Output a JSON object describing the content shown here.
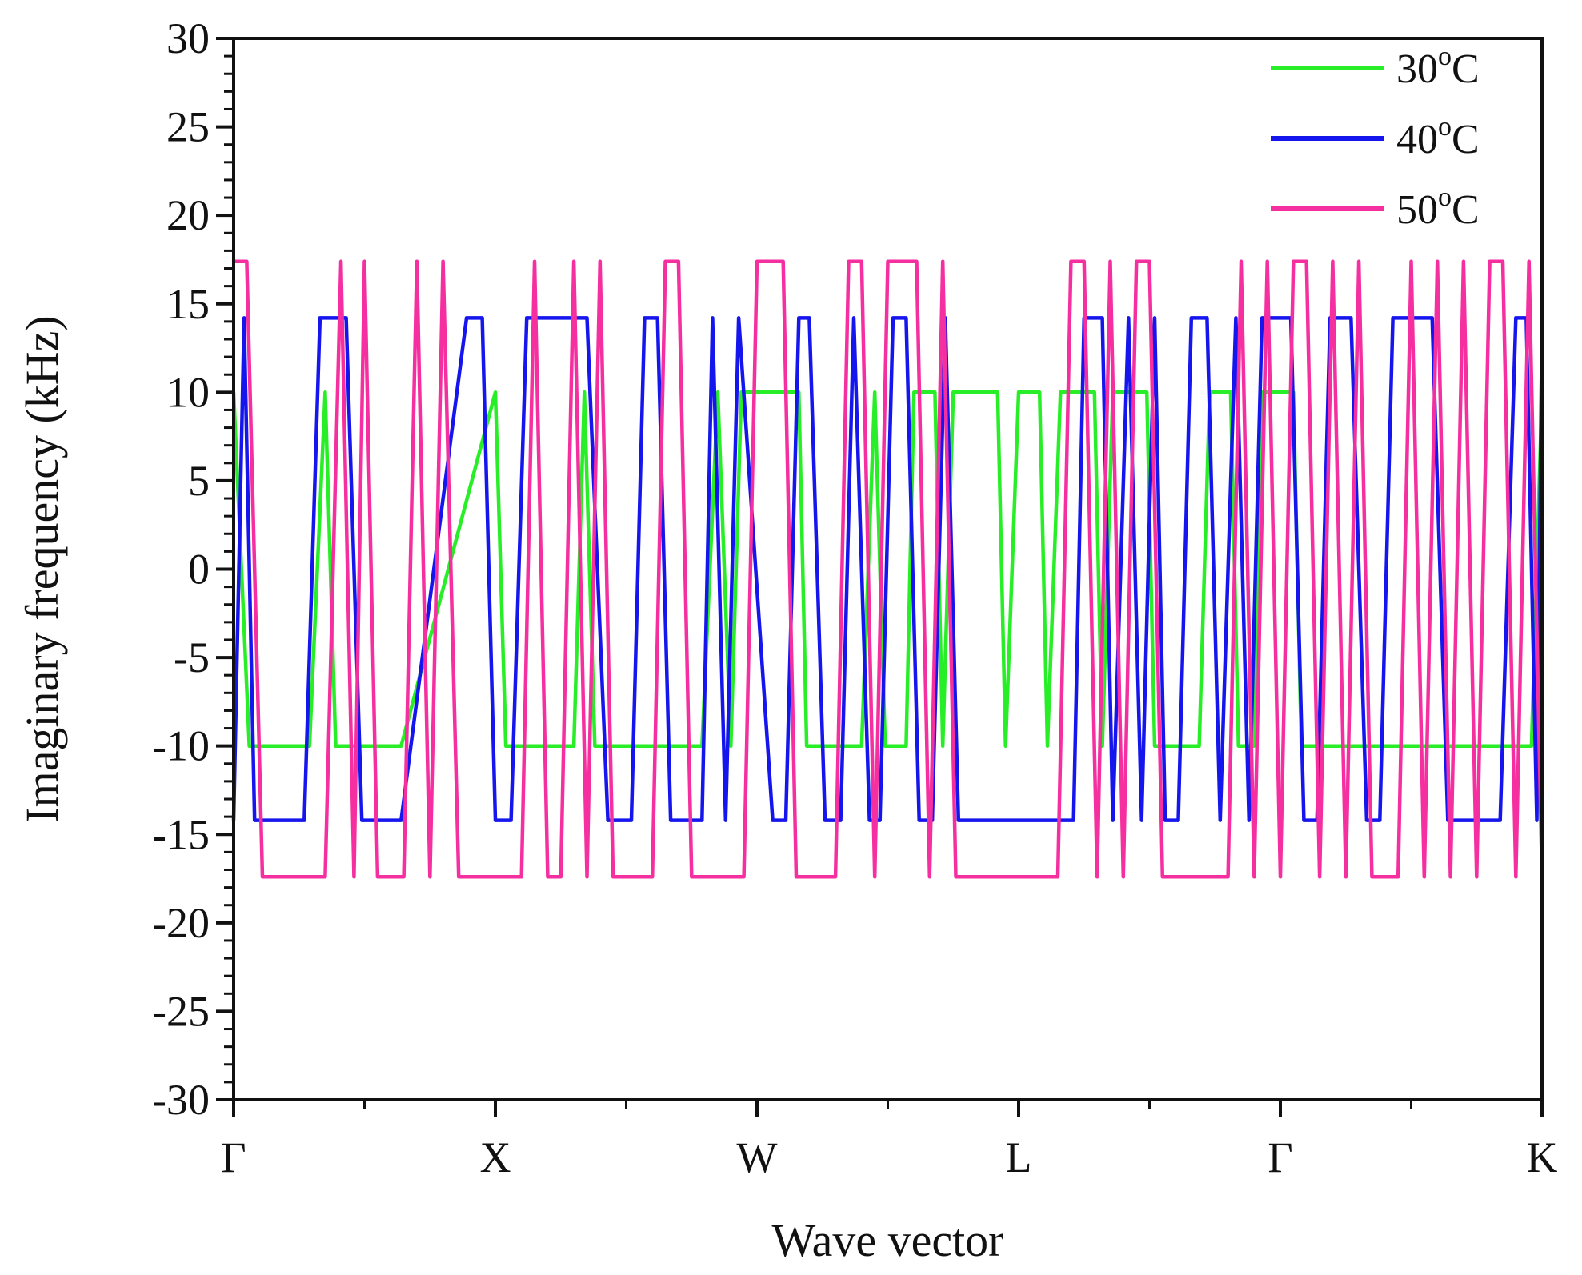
{
  "chart_data": {
    "type": "line",
    "title": "",
    "xlabel": "Wave vector",
    "ylabel": "Imaginary frequency (kHz)",
    "ylim": [
      -30,
      30
    ],
    "xlim": [
      0,
      5
    ],
    "yticks": [
      30,
      25,
      20,
      15,
      10,
      5,
      0,
      -5,
      -10,
      -15,
      -20,
      -25,
      -30
    ],
    "x_ticks": [
      {
        "value": 0,
        "label": "Γ"
      },
      {
        "value": 1,
        "label": "X"
      },
      {
        "value": 2,
        "label": "W"
      },
      {
        "value": 3,
        "label": "L"
      },
      {
        "value": 4,
        "label": "Γ"
      },
      {
        "value": 5,
        "label": "K"
      }
    ],
    "legend": {
      "placement": "top-right"
    },
    "series": [
      {
        "name": "30°C",
        "label_base": "30",
        "label_sup": "o",
        "label_unit": "C",
        "color": "#27ee27",
        "points": [
          [
            0.0,
            10
          ],
          [
            0.06,
            -10
          ],
          [
            0.29,
            -10
          ],
          [
            0.35,
            10
          ],
          [
            0.39,
            -10
          ],
          [
            0.64,
            -10
          ],
          [
            1.0,
            10
          ],
          [
            1.04,
            -10
          ],
          [
            1.3,
            -10
          ],
          [
            1.34,
            10
          ],
          [
            1.38,
            -10
          ],
          [
            1.79,
            -10
          ],
          [
            1.85,
            10
          ],
          [
            1.9,
            -10
          ],
          [
            1.94,
            10
          ],
          [
            2.16,
            10
          ],
          [
            2.19,
            -10
          ],
          [
            2.4,
            -10
          ],
          [
            2.45,
            10
          ],
          [
            2.49,
            -10
          ],
          [
            2.57,
            -10
          ],
          [
            2.6,
            10
          ],
          [
            2.68,
            10
          ],
          [
            2.71,
            -10
          ],
          [
            2.75,
            10
          ],
          [
            2.92,
            10
          ],
          [
            2.95,
            -10
          ],
          [
            3.0,
            10
          ],
          [
            3.08,
            10
          ],
          [
            3.11,
            -10
          ],
          [
            3.16,
            10
          ],
          [
            3.29,
            10
          ],
          [
            3.32,
            -10
          ],
          [
            3.36,
            10
          ],
          [
            3.49,
            10
          ],
          [
            3.52,
            -10
          ],
          [
            3.69,
            -10
          ],
          [
            3.73,
            10
          ],
          [
            3.81,
            10
          ],
          [
            3.84,
            -10
          ],
          [
            3.9,
            -10
          ],
          [
            3.93,
            10
          ],
          [
            4.05,
            10
          ],
          [
            4.08,
            -10
          ],
          [
            4.96,
            -10
          ],
          [
            5.0,
            10
          ]
        ]
      },
      {
        "name": "40°C",
        "label_base": "40",
        "label_sup": "o",
        "label_unit": "C",
        "color": "#1515ee",
        "points": [
          [
            0.0,
            -14.2
          ],
          [
            0.04,
            14.2
          ],
          [
            0.08,
            -14.2
          ],
          [
            0.27,
            -14.2
          ],
          [
            0.33,
            14.2
          ],
          [
            0.43,
            14.2
          ],
          [
            0.49,
            -14.2
          ],
          [
            0.64,
            -14.2
          ],
          [
            0.89,
            14.2
          ],
          [
            0.95,
            14.2
          ],
          [
            1.0,
            -14.2
          ],
          [
            1.06,
            -14.2
          ],
          [
            1.12,
            14.2
          ],
          [
            1.35,
            14.2
          ],
          [
            1.43,
            -14.2
          ],
          [
            1.52,
            -14.2
          ],
          [
            1.57,
            14.2
          ],
          [
            1.62,
            14.2
          ],
          [
            1.67,
            -14.2
          ],
          [
            1.79,
            -14.2
          ],
          [
            1.83,
            14.2
          ],
          [
            1.88,
            -14.2
          ],
          [
            1.93,
            14.2
          ],
          [
            2.06,
            -14.2
          ],
          [
            2.11,
            -14.2
          ],
          [
            2.16,
            14.2
          ],
          [
            2.2,
            14.2
          ],
          [
            2.26,
            -14.2
          ],
          [
            2.32,
            -14.2
          ],
          [
            2.37,
            14.2
          ],
          [
            2.43,
            -14.2
          ],
          [
            2.47,
            -14.2
          ],
          [
            2.52,
            14.2
          ],
          [
            2.57,
            14.2
          ],
          [
            2.62,
            -14.2
          ],
          [
            2.67,
            -14.2
          ],
          [
            2.72,
            14.2
          ],
          [
            2.77,
            -14.2
          ],
          [
            3.21,
            -14.2
          ],
          [
            3.25,
            14.2
          ],
          [
            3.32,
            14.2
          ],
          [
            3.36,
            -14.2
          ],
          [
            3.42,
            14.2
          ],
          [
            3.47,
            -14.2
          ],
          [
            3.52,
            14.2
          ],
          [
            3.56,
            -14.2
          ],
          [
            3.61,
            -14.2
          ],
          [
            3.66,
            14.2
          ],
          [
            3.72,
            14.2
          ],
          [
            3.77,
            -14.2
          ],
          [
            3.83,
            14.2
          ],
          [
            3.88,
            -14.2
          ],
          [
            3.93,
            14.2
          ],
          [
            4.04,
            14.2
          ],
          [
            4.09,
            -14.2
          ],
          [
            4.14,
            -14.2
          ],
          [
            4.19,
            14.2
          ],
          [
            4.27,
            14.2
          ],
          [
            4.33,
            -14.2
          ],
          [
            4.38,
            -14.2
          ],
          [
            4.43,
            14.2
          ],
          [
            4.58,
            14.2
          ],
          [
            4.64,
            -14.2
          ],
          [
            4.84,
            -14.2
          ],
          [
            4.9,
            14.2
          ],
          [
            4.94,
            14.2
          ],
          [
            4.98,
            -14.2
          ],
          [
            5.0,
            14.2
          ]
        ]
      },
      {
        "name": "50°C",
        "label_base": "50",
        "label_sup": "o",
        "label_unit": "C",
        "color": "#f52f9f",
        "points": [
          [
            0.0,
            17.4
          ],
          [
            0.05,
            17.4
          ],
          [
            0.11,
            -17.4
          ],
          [
            0.35,
            -17.4
          ],
          [
            0.41,
            17.4
          ],
          [
            0.46,
            -17.4
          ],
          [
            0.5,
            17.4
          ],
          [
            0.55,
            -17.4
          ],
          [
            0.65,
            -17.4
          ],
          [
            0.7,
            17.4
          ],
          [
            0.75,
            -17.4
          ],
          [
            0.8,
            17.4
          ],
          [
            0.86,
            -17.4
          ],
          [
            1.1,
            -17.4
          ],
          [
            1.15,
            17.4
          ],
          [
            1.2,
            -17.4
          ],
          [
            1.25,
            -17.4
          ],
          [
            1.3,
            17.4
          ],
          [
            1.35,
            -17.4
          ],
          [
            1.4,
            17.4
          ],
          [
            1.45,
            -17.4
          ],
          [
            1.6,
            -17.4
          ],
          [
            1.65,
            17.4
          ],
          [
            1.7,
            17.4
          ],
          [
            1.75,
            -17.4
          ],
          [
            1.95,
            -17.4
          ],
          [
            2.0,
            17.4
          ],
          [
            2.1,
            17.4
          ],
          [
            2.15,
            -17.4
          ],
          [
            2.3,
            -17.4
          ],
          [
            2.35,
            17.4
          ],
          [
            2.4,
            17.4
          ],
          [
            2.45,
            -17.4
          ],
          [
            2.5,
            17.4
          ],
          [
            2.61,
            17.4
          ],
          [
            2.66,
            -17.4
          ],
          [
            2.71,
            17.4
          ],
          [
            2.76,
            -17.4
          ],
          [
            3.15,
            -17.4
          ],
          [
            3.2,
            17.4
          ],
          [
            3.25,
            17.4
          ],
          [
            3.3,
            -17.4
          ],
          [
            3.35,
            17.4
          ],
          [
            3.4,
            -17.4
          ],
          [
            3.45,
            17.4
          ],
          [
            3.5,
            17.4
          ],
          [
            3.55,
            -17.4
          ],
          [
            3.8,
            -17.4
          ],
          [
            3.85,
            17.4
          ],
          [
            3.9,
            -17.4
          ],
          [
            3.95,
            17.4
          ],
          [
            4.0,
            -17.4
          ],
          [
            4.05,
            17.4
          ],
          [
            4.1,
            17.4
          ],
          [
            4.15,
            -17.4
          ],
          [
            4.2,
            17.4
          ],
          [
            4.25,
            -17.4
          ],
          [
            4.3,
            17.4
          ],
          [
            4.35,
            -17.4
          ],
          [
            4.45,
            -17.4
          ],
          [
            4.5,
            17.4
          ],
          [
            4.55,
            -17.4
          ],
          [
            4.6,
            17.4
          ],
          [
            4.65,
            -17.4
          ],
          [
            4.7,
            17.4
          ],
          [
            4.75,
            -17.4
          ],
          [
            4.8,
            17.4
          ],
          [
            4.85,
            17.4
          ],
          [
            4.9,
            -17.4
          ],
          [
            4.95,
            17.4
          ],
          [
            5.0,
            -17.4
          ]
        ]
      }
    ]
  }
}
